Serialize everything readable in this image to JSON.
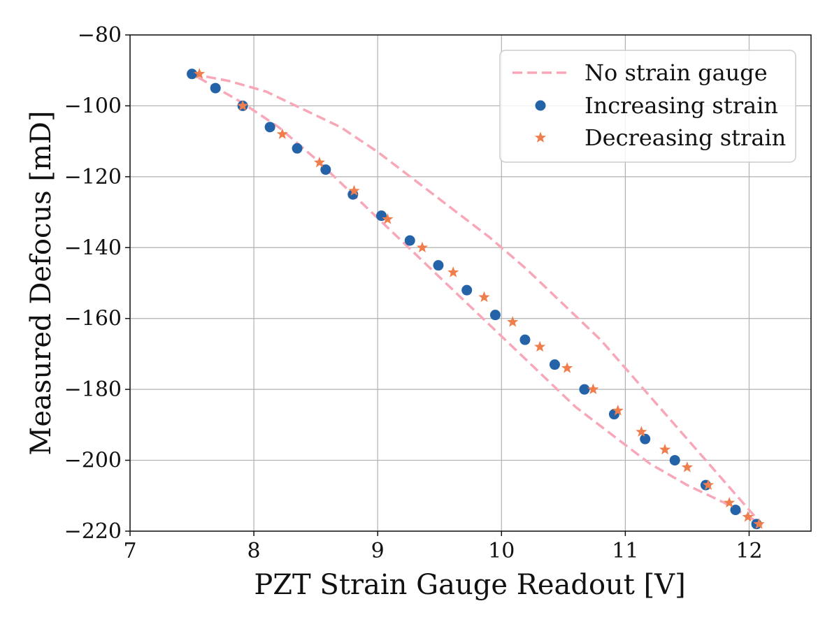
{
  "chart_data": {
    "type": "scatter",
    "xlabel": "PZT Strain Gauge Readout [V]",
    "ylabel": "Measured Defocus [mD]",
    "xlim": [
      7,
      12.5
    ],
    "ylim": [
      -220,
      -80
    ],
    "xticks": [
      7,
      8,
      9,
      10,
      11,
      12
    ],
    "yticks": [
      -80,
      -100,
      -120,
      -140,
      -160,
      -180,
      -200,
      -220
    ],
    "xtick_labels": [
      "7",
      "8",
      "9",
      "10",
      "11",
      "12"
    ],
    "ytick_labels": [
      "−80",
      "−100",
      "−120",
      "−140",
      "−160",
      "−180",
      "−200",
      "−220"
    ],
    "grid": true,
    "legend_position": "top-right",
    "series": [
      {
        "name": "No strain gauge",
        "kind": "line",
        "style": "dashed",
        "color": "#f8a7b8",
        "points": [
          [
            7.5,
            -91
          ],
          [
            7.8,
            -93
          ],
          [
            8.1,
            -96
          ],
          [
            8.4,
            -101
          ],
          [
            8.7,
            -106
          ],
          [
            9.0,
            -113
          ],
          [
            9.3,
            -121
          ],
          [
            9.6,
            -129
          ],
          [
            9.9,
            -137
          ],
          [
            10.2,
            -146
          ],
          [
            10.5,
            -156
          ],
          [
            10.8,
            -166
          ],
          [
            11.1,
            -178
          ],
          [
            11.4,
            -190
          ],
          [
            11.7,
            -202
          ],
          [
            12.0,
            -214
          ],
          [
            12.1,
            -218
          ],
          [
            11.8,
            -212
          ],
          [
            11.5,
            -207
          ],
          [
            11.2,
            -201
          ],
          [
            10.9,
            -193
          ],
          [
            10.6,
            -185
          ],
          [
            10.3,
            -175
          ],
          [
            10.0,
            -165
          ],
          [
            9.7,
            -155
          ],
          [
            9.4,
            -145
          ],
          [
            9.1,
            -135
          ],
          [
            8.8,
            -125
          ],
          [
            8.5,
            -115
          ],
          [
            8.2,
            -106
          ],
          [
            7.9,
            -99
          ],
          [
            7.6,
            -93
          ],
          [
            7.5,
            -91
          ]
        ]
      },
      {
        "name": "Increasing strain",
        "kind": "scatter",
        "marker": "circle",
        "color": "#2563a8",
        "points": [
          [
            7.5,
            -91
          ],
          [
            7.69,
            -95
          ],
          [
            7.91,
            -100
          ],
          [
            8.13,
            -106
          ],
          [
            8.35,
            -112
          ],
          [
            8.58,
            -118
          ],
          [
            8.8,
            -125
          ],
          [
            9.03,
            -131
          ],
          [
            9.26,
            -138
          ],
          [
            9.49,
            -145
          ],
          [
            9.72,
            -152
          ],
          [
            9.95,
            -159
          ],
          [
            10.19,
            -166
          ],
          [
            10.43,
            -173
          ],
          [
            10.67,
            -180
          ],
          [
            10.91,
            -187
          ],
          [
            11.16,
            -194
          ],
          [
            11.4,
            -200
          ],
          [
            11.65,
            -207
          ],
          [
            11.89,
            -214
          ],
          [
            12.06,
            -218
          ]
        ]
      },
      {
        "name": "Decreasing strain",
        "kind": "scatter",
        "marker": "star",
        "color": "#f07e4d",
        "points": [
          [
            12.08,
            -218
          ],
          [
            11.99,
            -216
          ],
          [
            11.84,
            -212
          ],
          [
            11.67,
            -207
          ],
          [
            11.5,
            -202
          ],
          [
            11.32,
            -197
          ],
          [
            11.13,
            -192
          ],
          [
            10.94,
            -186
          ],
          [
            10.74,
            -180
          ],
          [
            10.53,
            -174
          ],
          [
            10.31,
            -168
          ],
          [
            10.09,
            -161
          ],
          [
            9.86,
            -154
          ],
          [
            9.61,
            -147
          ],
          [
            9.36,
            -140
          ],
          [
            9.08,
            -132
          ],
          [
            8.81,
            -124
          ],
          [
            8.53,
            -116
          ],
          [
            8.23,
            -108
          ],
          [
            7.91,
            -100
          ],
          [
            7.56,
            -91
          ]
        ]
      }
    ]
  }
}
